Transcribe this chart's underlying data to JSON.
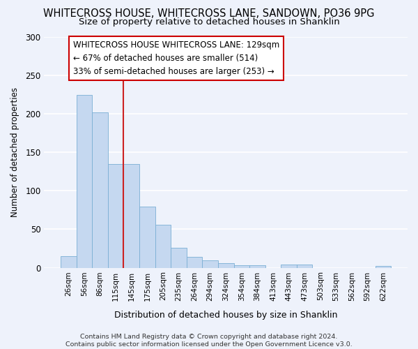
{
  "title": "WHITECROSS HOUSE, WHITECROSS LANE, SANDOWN, PO36 9PG",
  "subtitle": "Size of property relative to detached houses in Shanklin",
  "xlabel": "Distribution of detached houses by size in Shanklin",
  "ylabel": "Number of detached properties",
  "bar_color": "#c5d8f0",
  "bar_edge_color": "#7aafd4",
  "categories": [
    "26sqm",
    "56sqm",
    "86sqm",
    "115sqm",
    "145sqm",
    "175sqm",
    "205sqm",
    "235sqm",
    "264sqm",
    "294sqm",
    "324sqm",
    "354sqm",
    "384sqm",
    "413sqm",
    "443sqm",
    "473sqm",
    "503sqm",
    "533sqm",
    "562sqm",
    "592sqm",
    "622sqm"
  ],
  "values": [
    15,
    224,
    202,
    135,
    135,
    79,
    56,
    26,
    14,
    10,
    6,
    3,
    3,
    0,
    4,
    4,
    0,
    0,
    0,
    0,
    2
  ],
  "red_line_x": 3.5,
  "annotation_text": "WHITECROSS HOUSE WHITECROSS LANE: 129sqm\n← 67% of detached houses are smaller (514)\n33% of semi-detached houses are larger (253) →",
  "annotation_box_color": "#ffffff",
  "annotation_border_color": "#cc0000",
  "ylim": [
    0,
    300
  ],
  "yticks": [
    0,
    50,
    100,
    150,
    200,
    250,
    300
  ],
  "footer": "Contains HM Land Registry data © Crown copyright and database right 2024.\nContains public sector information licensed under the Open Government Licence v3.0.",
  "background_color": "#eef2fb",
  "grid_color": "#ffffff",
  "title_fontsize": 10.5,
  "subtitle_fontsize": 9.5,
  "annotation_fontsize": 8.5
}
